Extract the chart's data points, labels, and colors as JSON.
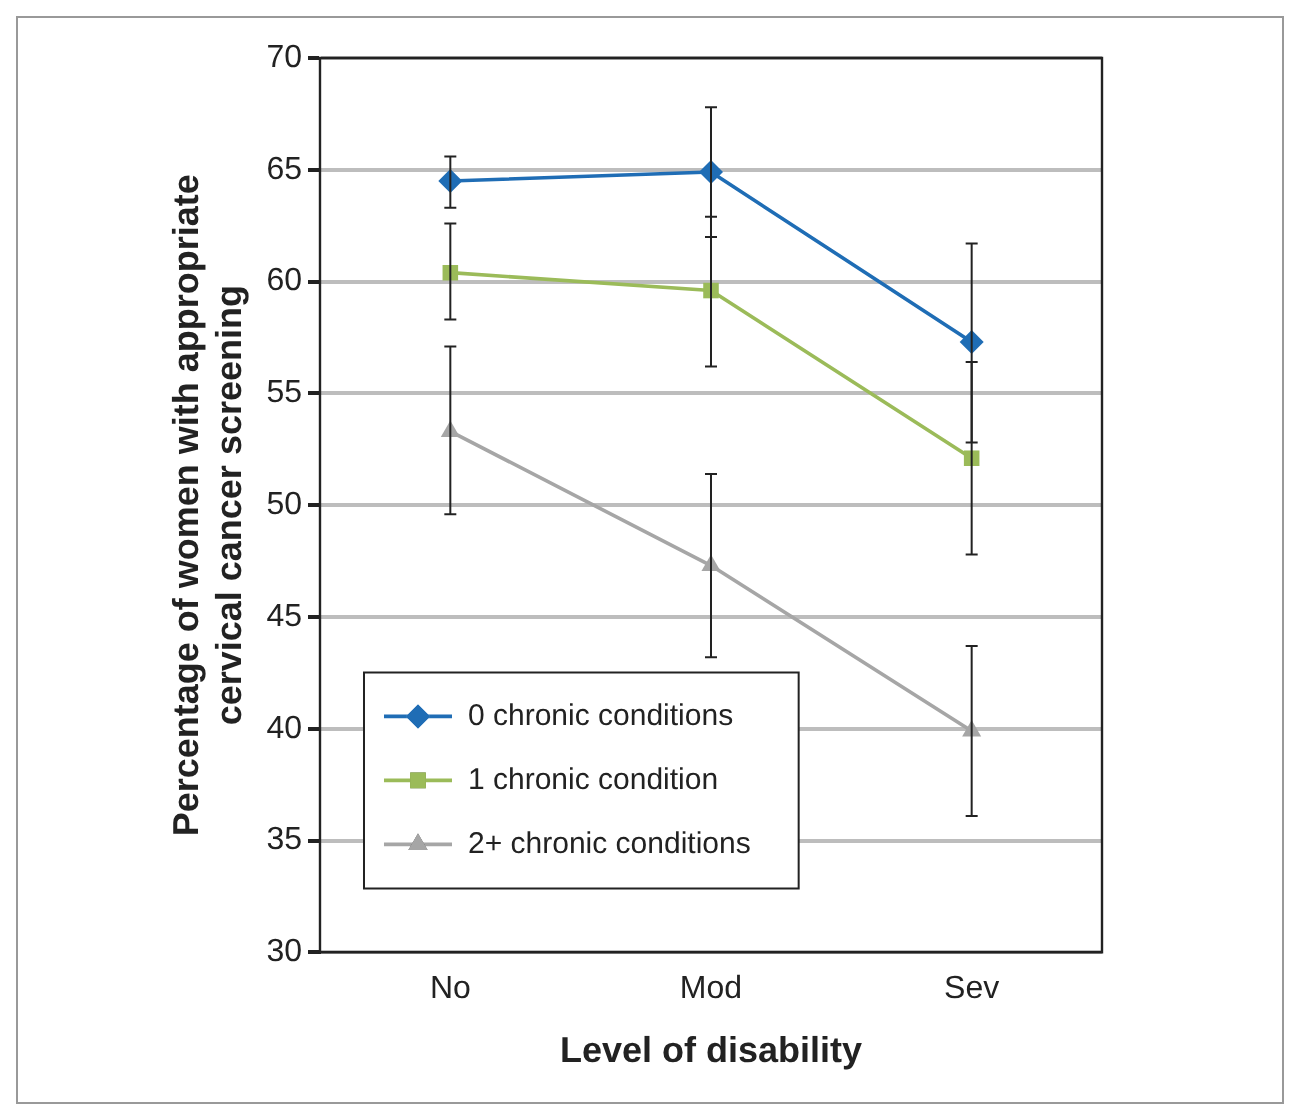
{
  "chart_data": {
    "type": "line",
    "xlabel": "Level of disability",
    "ylabel": "Percentage of women with appropriate cervical cancer screening",
    "categories": [
      "No",
      "Mod",
      "Sev"
    ],
    "series": [
      {
        "name": "0 chronic conditions",
        "color": "#1f6db5",
        "marker": "diamond",
        "values": [
          64.5,
          64.9,
          57.3
        ],
        "errors": [
          [
            63.3,
            65.6
          ],
          [
            62.0,
            67.8
          ],
          [
            52.8,
            61.7
          ]
        ]
      },
      {
        "name": "1 chronic condition",
        "color": "#9bbb59",
        "marker": "square",
        "values": [
          60.4,
          59.6,
          52.1
        ],
        "errors": [
          [
            58.3,
            62.6
          ],
          [
            56.2,
            62.9
          ],
          [
            47.8,
            56.4
          ]
        ]
      },
      {
        "name": "2+ chronic conditions",
        "color": "#a6a6a6",
        "marker": "triangle",
        "values": [
          53.3,
          47.3,
          39.9
        ],
        "errors": [
          [
            49.6,
            57.1
          ],
          [
            43.2,
            51.4
          ],
          [
            36.1,
            43.7
          ]
        ]
      }
    ],
    "ylim": [
      30,
      70
    ],
    "yticks": [
      30,
      35,
      40,
      45,
      50,
      55,
      60,
      65,
      70
    ],
    "grid": "y",
    "legend": "bottom left",
    "line_style": "solid"
  }
}
